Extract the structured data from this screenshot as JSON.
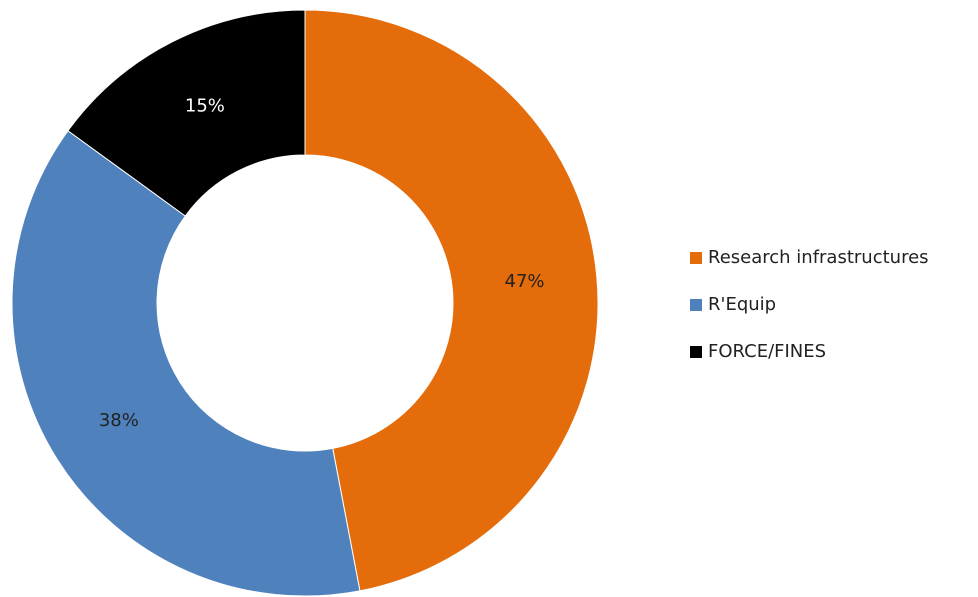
{
  "chart_data": {
    "type": "donut",
    "categories": [
      "Research infrastructures",
      "R'Equip",
      "FORCE/FINES"
    ],
    "values": [
      47,
      38,
      15
    ],
    "value_labels": [
      "47%",
      "38%",
      "15%"
    ],
    "colors": [
      "#e46c0a",
      "#4f81bd",
      "#000000"
    ],
    "legend": "right"
  }
}
